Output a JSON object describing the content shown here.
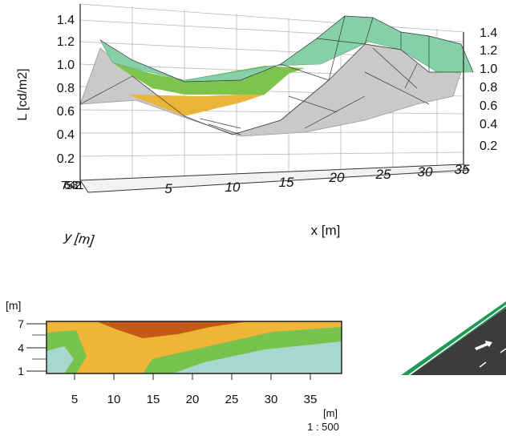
{
  "chart_data": [
    {
      "type": "surface",
      "ylabel": "L [cd/m2]",
      "xlabel": "x [m]",
      "depth_label": "y [m]",
      "z_ticks": [
        "0.2",
        "0.4",
        "0.6",
        "0.8",
        "1.0",
        "1.2",
        "1.4"
      ],
      "z_ticks_right": [
        "0.2",
        "0.4",
        "0.6",
        "0.8",
        "1.0",
        "1.2",
        "1.4"
      ],
      "x_ticks": [
        "5",
        "10",
        "15",
        "20",
        "25",
        "30",
        "35"
      ],
      "y_ticks_label": "7654321",
      "zlim": [
        0,
        1.4
      ],
      "xlim": [
        0,
        37
      ],
      "front_profile": {
        "x": [
          0,
          3,
          7,
          11,
          15,
          20,
          24,
          28,
          32,
          37
        ],
        "y": [
          0.55,
          0.9,
          0.6,
          0.5,
          0.55,
          0.95,
          1.3,
          1.4,
          1.25,
          1.05
        ]
      },
      "back_profile": {
        "x": [
          0,
          4,
          8,
          12,
          16,
          20,
          24,
          28,
          32,
          37
        ],
        "y": [
          0.65,
          0.55,
          0.45,
          0.4,
          0.45,
          0.6,
          0.85,
          1.0,
          0.95,
          0.9
        ]
      },
      "color_bands": [
        {
          "range": [
            0,
            0.6
          ],
          "color": "#c9c9c9"
        },
        {
          "range": [
            0.6,
            0.8
          ],
          "color": "#e9b43a"
        },
        {
          "range": [
            0.8,
            1.0
          ],
          "color": "#7cc44e"
        },
        {
          "range": [
            1.0,
            1.4
          ],
          "color": "#86d0a7"
        }
      ]
    },
    {
      "type": "heatmap",
      "ylabel": "[m]",
      "xlabel": "[m]",
      "scale_label": "1 : 500",
      "y_ticks": [
        "7",
        "4",
        "1"
      ],
      "x_ticks": [
        "5",
        "10",
        "15",
        "20",
        "25",
        "30",
        "35"
      ],
      "xlim": [
        0,
        38
      ],
      "ylim": [
        0.5,
        7.5
      ],
      "regions": [
        {
          "name": "orange",
          "color": "#f0b437"
        },
        {
          "name": "red-brown",
          "color": "#c55a17"
        },
        {
          "name": "green",
          "color": "#78c24e"
        },
        {
          "name": "light-teal",
          "color": "#a6d8cf"
        }
      ]
    }
  ],
  "scene": {
    "road_color": "#3c3c3c",
    "verge_color": "#1e9a55",
    "marking_color": "#ffffff"
  }
}
